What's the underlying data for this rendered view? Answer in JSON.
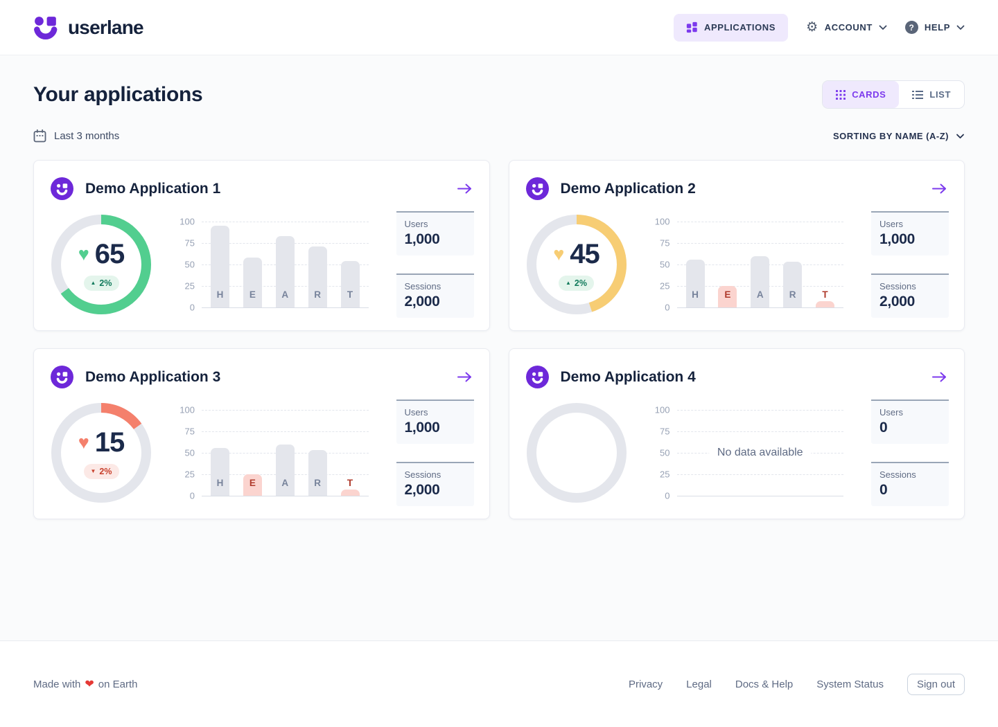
{
  "header": {
    "brand": "userlane",
    "applications_label": "APPLICATIONS",
    "account_label": "ACCOUNT",
    "help_label": "HELP"
  },
  "page": {
    "title": "Your applications",
    "cards_toggle_label": "CARDS",
    "list_toggle_label": "LIST",
    "date_filter_label": "Last 3 months",
    "sorting_label": "SORTING BY NAME (A-Z)"
  },
  "colors": {
    "accent_purple": "#7C3AED",
    "logo_purple": "#6D28D9",
    "navy_text": "#1B2A4A",
    "score_green": "#52CE8F",
    "score_yellow": "#F7CD74",
    "score_coral": "#F4806C",
    "ring_gray": "#E4E6EC",
    "bar_gray": "#E4E6EC",
    "bar_pink": "#FBD4CF",
    "trend_up_text": "#117A5B",
    "trend_down_text": "#C8402C"
  },
  "axis_ticks": [
    "100",
    "75",
    "50",
    "25",
    "0"
  ],
  "cards": [
    {
      "title": "Demo Application 1",
      "score": 65,
      "ring_color": "#52CE8F",
      "trend_direction": "up",
      "trend_label": "2%",
      "users_label": "Users",
      "users_value": "1,000",
      "sessions_label": "Sessions",
      "sessions_value": "2,000",
      "chart": {
        "categories": [
          "H",
          "E",
          "A",
          "R",
          "T"
        ],
        "values": [
          95,
          58,
          83,
          71,
          54
        ],
        "highlighted": [
          false,
          false,
          false,
          false,
          false
        ]
      }
    },
    {
      "title": "Demo Application 2",
      "score": 45,
      "ring_color": "#F7CD74",
      "trend_direction": "up",
      "trend_label": "2%",
      "users_label": "Users",
      "users_value": "1,000",
      "sessions_label": "Sessions",
      "sessions_value": "2,000",
      "chart": {
        "categories": [
          "H",
          "E",
          "A",
          "R",
          "T"
        ],
        "values": [
          56,
          25,
          60,
          53,
          7
        ],
        "highlighted": [
          false,
          true,
          false,
          false,
          true
        ]
      }
    },
    {
      "title": "Demo Application 3",
      "score": 15,
      "ring_color": "#F4806C",
      "trend_direction": "down",
      "trend_label": "2%",
      "users_label": "Users",
      "users_value": "1,000",
      "sessions_label": "Sessions",
      "sessions_value": "2,000",
      "chart": {
        "categories": [
          "H",
          "E",
          "A",
          "R",
          "T"
        ],
        "values": [
          56,
          25,
          60,
          53,
          7
        ],
        "highlighted": [
          false,
          true,
          false,
          false,
          true
        ]
      }
    },
    {
      "title": "Demo Application 4",
      "score": null,
      "ring_color": null,
      "no_data_label": "No data available",
      "users_label": "Users",
      "users_value": "0",
      "sessions_label": "Sessions",
      "sessions_value": "0",
      "chart": null
    }
  ],
  "chart_data": [
    {
      "type": "pie",
      "title": "Demo Application 1 HEART score donut",
      "value": 65,
      "max": 100,
      "trend": "+2%",
      "color": "#52CE8F"
    },
    {
      "type": "bar",
      "title": "Demo Application 1 HEART breakdown",
      "categories": [
        "H",
        "E",
        "A",
        "R",
        "T"
      ],
      "values": [
        95,
        58,
        83,
        71,
        54
      ],
      "ylim": [
        0,
        100
      ],
      "yticks": [
        0,
        25,
        50,
        75,
        100
      ],
      "grid": "dashed"
    },
    {
      "type": "pie",
      "title": "Demo Application 2 HEART score donut",
      "value": 45,
      "max": 100,
      "trend": "+2%",
      "color": "#F7CD74"
    },
    {
      "type": "bar",
      "title": "Demo Application 2 HEART breakdown",
      "categories": [
        "H",
        "E",
        "A",
        "R",
        "T"
      ],
      "values": [
        56,
        25,
        60,
        53,
        7
      ],
      "highlighted_categories": [
        "E",
        "T"
      ],
      "ylim": [
        0,
        100
      ],
      "yticks": [
        0,
        25,
        50,
        75,
        100
      ],
      "grid": "dashed"
    },
    {
      "type": "pie",
      "title": "Demo Application 3 HEART score donut",
      "value": 15,
      "max": 100,
      "trend": "-2%",
      "color": "#F4806C"
    },
    {
      "type": "bar",
      "title": "Demo Application 3 HEART breakdown",
      "categories": [
        "H",
        "E",
        "A",
        "R",
        "T"
      ],
      "values": [
        56,
        25,
        60,
        53,
        7
      ],
      "highlighted_categories": [
        "E",
        "T"
      ],
      "ylim": [
        0,
        100
      ],
      "yticks": [
        0,
        25,
        50,
        75,
        100
      ],
      "grid": "dashed"
    },
    {
      "type": "pie",
      "title": "Demo Application 4 HEART score donut",
      "value": null,
      "max": 100,
      "note": "empty gray ring"
    },
    {
      "type": "bar",
      "title": "Demo Application 4 HEART breakdown",
      "categories": [],
      "values": [],
      "annotation": "No data available",
      "ylim": [
        0,
        100
      ],
      "yticks": [
        0,
        25,
        50,
        75,
        100
      ],
      "grid": "dashed"
    }
  ],
  "footer": {
    "made_with": "Made with",
    "heart_glyph": "❤",
    "on_earth": "on Earth",
    "links": [
      "Privacy",
      "Legal",
      "Docs & Help",
      "System Status"
    ],
    "sign_out_label": "Sign out"
  }
}
